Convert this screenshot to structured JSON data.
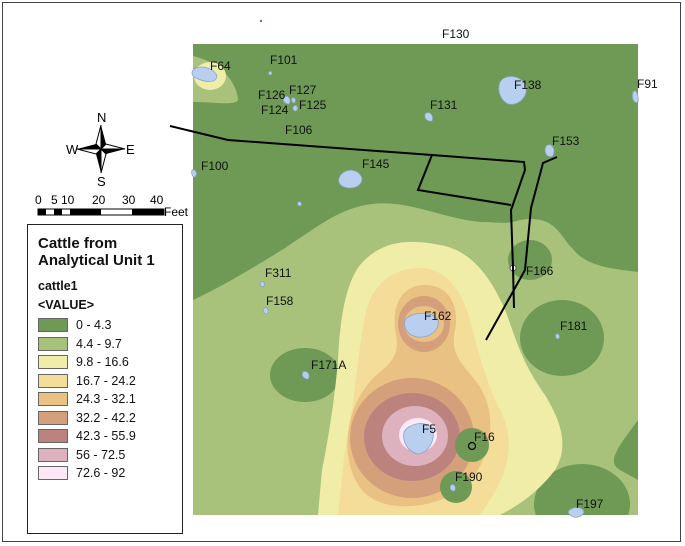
{
  "legend": {
    "title": "Cattle from Analytical Unit 1",
    "layer": "cattle1",
    "field": "<VALUE>",
    "classes": [
      {
        "label": "0 - 4.3",
        "color": "#6e9a56"
      },
      {
        "label": "4.4 - 9.7",
        "color": "#a8c27c"
      },
      {
        "label": "9.8 - 16.6",
        "color": "#efeda8"
      },
      {
        "label": "16.7 - 24.2",
        "color": "#f4dd98"
      },
      {
        "label": "24.3 - 32.1",
        "color": "#e9c182"
      },
      {
        "label": "32.2 - 42.2",
        "color": "#d3a07b"
      },
      {
        "label": "42.3 - 55.9",
        "color": "#bc837e"
      },
      {
        "label": "56 - 72.5",
        "color": "#ddb2be"
      },
      {
        "label": "72.6 - 92",
        "color": "#fde9f6"
      }
    ]
  },
  "compass": {
    "n": "N",
    "s": "S",
    "e": "E",
    "w": "W"
  },
  "scalebar": {
    "ticks": [
      "0",
      "5",
      "10",
      "20",
      "30",
      "40"
    ],
    "unit": "Feet"
  },
  "features": [
    "F130",
    "F101",
    "F64",
    "F127",
    "F126",
    "F125",
    "F124",
    "F106",
    "F138",
    "F91",
    "F131",
    "F153",
    "F100",
    "F145",
    "F311",
    "F166",
    "F158",
    "F162",
    "F181",
    "F171A",
    "F5",
    "F16",
    "F190",
    "F197"
  ],
  "colors": {
    "feature_fill": "#b9cff0",
    "feature_stroke": "#8aa3c8",
    "boundary": "#000000"
  }
}
